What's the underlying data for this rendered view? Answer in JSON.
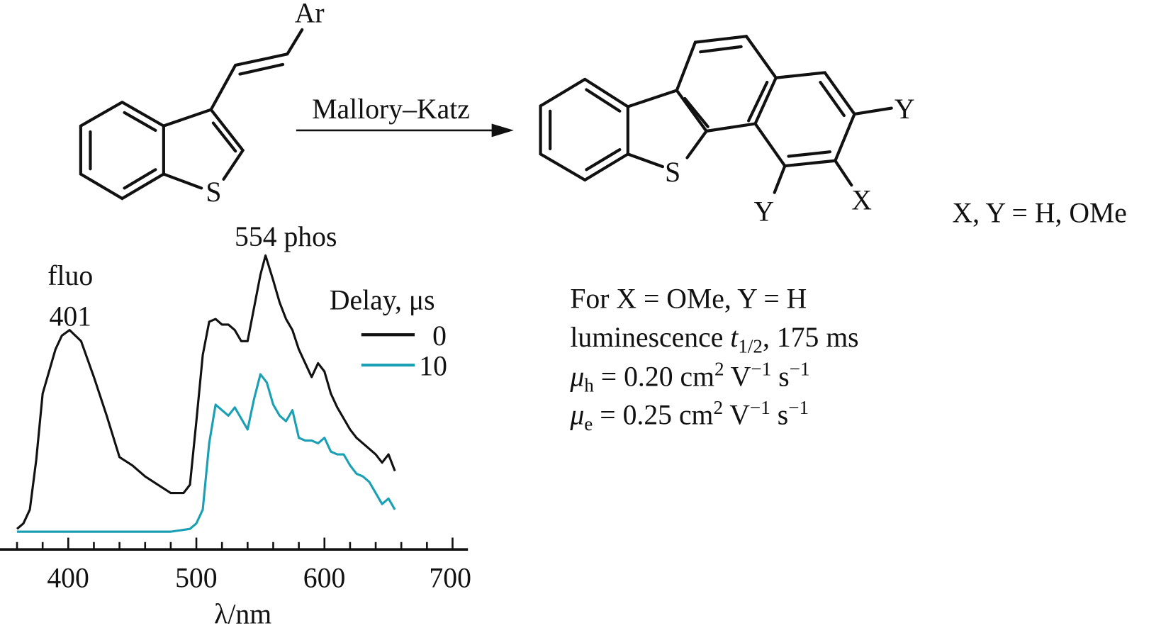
{
  "scheme": {
    "reactant": {
      "substituent": "Ar",
      "heteroatom": "S"
    },
    "arrow_label": "Mallory–Katz",
    "product": {
      "heteroatom": "S",
      "substituent_top_right": "Y",
      "substituent_bottom_left": "Y",
      "substituent_bottom_right": "X"
    },
    "substituent_definition": "X, Y = H, OMe"
  },
  "properties": {
    "line1": "For X = OMe, Y = H",
    "line2": {
      "text": "luminescence ",
      "symbol": "t",
      "sub": "1/2",
      "rest": ", 175 ms"
    },
    "line3": {
      "symbol": "μ",
      "sub": "h",
      "value": " = 0.20 cm",
      "sup1": "2",
      "unit2": " V",
      "sup2": "−1",
      "unit3": " s",
      "sup3": "−1"
    },
    "line4": {
      "symbol": "μ",
      "sub": "e",
      "value": " = 0.25 cm",
      "sup1": "2",
      "unit2": " V",
      "sup2": "−1",
      "unit3": " s",
      "sup3": "−1"
    }
  },
  "chart_data": {
    "type": "line",
    "xlabel": "λ/nm",
    "ylabel": "",
    "xlim": [
      360,
      705
    ],
    "x_ticks": [
      400,
      500,
      600,
      700
    ],
    "x_tick_labels": [
      "400",
      "500",
      "600",
      "700"
    ],
    "minor_tick_step": 20,
    "y_axis_shown": false,
    "grid": false,
    "annotations": [
      {
        "text": "fluo",
        "x": 401
      },
      {
        "text": "401",
        "x": 401
      },
      {
        "text": "554 phos",
        "x": 554
      }
    ],
    "legend": {
      "title": "Delay, μs",
      "placement": "top-right"
    },
    "series": [
      {
        "name": "0",
        "color": "#111111",
        "x": [
          360,
          365,
          370,
          375,
          380,
          385,
          390,
          395,
          401,
          410,
          420,
          430,
          440,
          450,
          460,
          470,
          480,
          490,
          495,
          500,
          505,
          510,
          515,
          520,
          525,
          530,
          535,
          540,
          545,
          550,
          554,
          560,
          565,
          570,
          575,
          580,
          585,
          590,
          595,
          600,
          605,
          610,
          615,
          620,
          625,
          630,
          640,
          645,
          650,
          655
        ],
        "y": [
          0.01,
          0.03,
          0.08,
          0.26,
          0.5,
          0.58,
          0.66,
          0.71,
          0.73,
          0.69,
          0.56,
          0.42,
          0.27,
          0.24,
          0.2,
          0.17,
          0.14,
          0.14,
          0.17,
          0.4,
          0.64,
          0.76,
          0.77,
          0.75,
          0.75,
          0.73,
          0.69,
          0.69,
          0.81,
          0.93,
          1.0,
          0.91,
          0.83,
          0.77,
          0.73,
          0.66,
          0.61,
          0.56,
          0.61,
          0.58,
          0.5,
          0.45,
          0.41,
          0.37,
          0.34,
          0.32,
          0.28,
          0.25,
          0.28,
          0.22
        ]
      },
      {
        "name": "10",
        "color": "#1a9fb5",
        "x": [
          360,
          380,
          400,
          420,
          440,
          460,
          480,
          495,
          500,
          505,
          510,
          515,
          520,
          525,
          530,
          535,
          540,
          545,
          550,
          555,
          560,
          565,
          570,
          575,
          580,
          585,
          590,
          595,
          600,
          605,
          610,
          615,
          620,
          625,
          630,
          635,
          640,
          645,
          650,
          655
        ],
        "y": [
          0.0,
          0.0,
          0.0,
          0.0,
          0.0,
          0.0,
          0.0,
          0.01,
          0.03,
          0.08,
          0.32,
          0.46,
          0.44,
          0.42,
          0.45,
          0.41,
          0.37,
          0.48,
          0.57,
          0.54,
          0.46,
          0.42,
          0.4,
          0.44,
          0.34,
          0.33,
          0.33,
          0.32,
          0.34,
          0.29,
          0.28,
          0.28,
          0.24,
          0.21,
          0.2,
          0.18,
          0.14,
          0.1,
          0.12,
          0.08
        ]
      }
    ]
  }
}
